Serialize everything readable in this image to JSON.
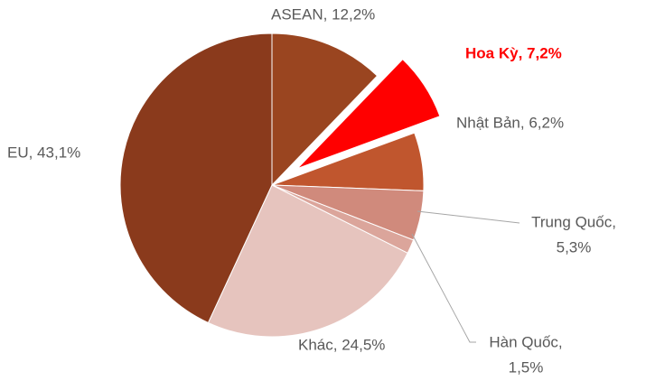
{
  "chart_data": {
    "type": "pie",
    "values": [
      12.2,
      7.2,
      6.2,
      5.3,
      1.5,
      24.5,
      43.1
    ],
    "value_labels": [
      [
        "ASEAN, 12,2%"
      ],
      [
        "Hoa Kỳ, 7,2%"
      ],
      [
        "Nhật Bản, 6,2%"
      ],
      [
        "Trung Quốc,",
        "5,3%"
      ],
      [
        "Hàn Quốc,",
        "1,5%"
      ],
      [
        "Khác, 24,5%"
      ],
      [
        "EU, 43,1%"
      ]
    ],
    "colors": [
      "#9a4520",
      "#ff0000",
      "#c0562e",
      "#d08a7c",
      "#dba59b",
      "#e6c4be",
      "#8a3a1c"
    ],
    "label_colors": [
      "#595959",
      "#ff0000",
      "#595959",
      "#595959",
      "#595959",
      "#595959",
      "#595959"
    ],
    "explode": [
      0,
      0.2,
      0,
      0,
      0,
      0,
      0
    ]
  }
}
